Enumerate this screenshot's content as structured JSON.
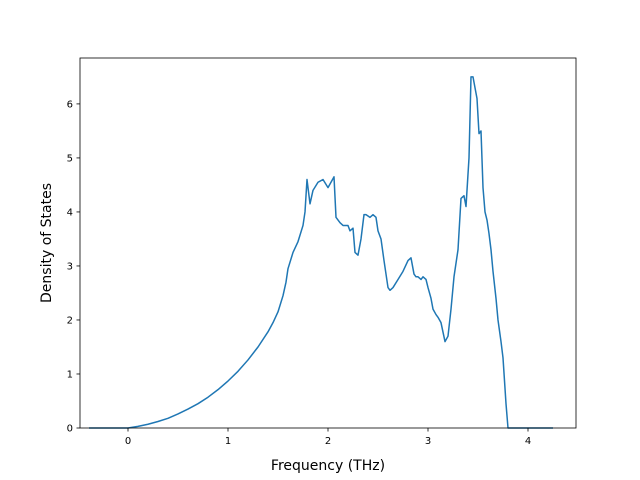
{
  "chart_data": {
    "type": "line",
    "title": "",
    "xlabel": "Frequency (THz)",
    "ylabel": "Density of States",
    "xlim": [
      -0.48,
      4.48
    ],
    "ylim": [
      0,
      6.85
    ],
    "xticks": [
      0,
      1,
      2,
      3,
      4
    ],
    "yticks": [
      0,
      1,
      2,
      3,
      4,
      5,
      6
    ],
    "grid": false,
    "legend": "none",
    "series": [
      {
        "color": "#1f77b4",
        "x": [
          -0.39,
          0.0,
          0.1,
          0.2,
          0.3,
          0.4,
          0.5,
          0.6,
          0.7,
          0.8,
          0.9,
          1.0,
          1.1,
          1.2,
          1.3,
          1.4,
          1.45,
          1.5,
          1.55,
          1.58,
          1.6,
          1.65,
          1.7,
          1.75,
          1.77,
          1.79,
          1.82,
          1.85,
          1.9,
          1.95,
          2.0,
          2.03,
          2.06,
          2.08,
          2.12,
          2.15,
          2.2,
          2.22,
          2.25,
          2.27,
          2.3,
          2.33,
          2.36,
          2.38,
          2.42,
          2.45,
          2.48,
          2.5,
          2.53,
          2.56,
          2.6,
          2.62,
          2.65,
          2.7,
          2.75,
          2.8,
          2.83,
          2.86,
          2.88,
          2.9,
          2.93,
          2.95,
          2.98,
          3.0,
          3.03,
          3.05,
          3.08,
          3.1,
          3.13,
          3.17,
          3.2,
          3.23,
          3.26,
          3.3,
          3.33,
          3.36,
          3.38,
          3.41,
          3.43,
          3.45,
          3.47,
          3.49,
          3.51,
          3.53,
          3.55,
          3.57,
          3.59,
          3.61,
          3.63,
          3.65,
          3.68,
          3.7,
          3.73,
          3.75,
          3.78,
          3.8,
          3.82,
          3.84,
          3.86,
          4.0,
          4.25
        ],
        "y": [
          0.0,
          0.0,
          0.03,
          0.07,
          0.12,
          0.18,
          0.26,
          0.35,
          0.45,
          0.57,
          0.71,
          0.87,
          1.05,
          1.26,
          1.5,
          1.78,
          1.95,
          2.15,
          2.45,
          2.7,
          2.95,
          3.25,
          3.45,
          3.75,
          4.0,
          4.6,
          4.15,
          4.4,
          4.55,
          4.6,
          4.45,
          4.55,
          4.65,
          3.9,
          3.8,
          3.75,
          3.75,
          3.65,
          3.7,
          3.25,
          3.2,
          3.5,
          3.95,
          3.95,
          3.9,
          3.95,
          3.9,
          3.65,
          3.5,
          3.1,
          2.6,
          2.55,
          2.6,
          2.75,
          2.9,
          3.1,
          3.15,
          2.85,
          2.8,
          2.8,
          2.75,
          2.8,
          2.75,
          2.6,
          2.4,
          2.2,
          2.1,
          2.05,
          1.95,
          1.6,
          1.7,
          2.2,
          2.8,
          3.3,
          4.25,
          4.3,
          4.1,
          5.0,
          6.5,
          6.5,
          6.3,
          6.1,
          5.45,
          5.5,
          4.45,
          4.0,
          3.85,
          3.6,
          3.3,
          2.9,
          2.4,
          2.0,
          1.6,
          1.3,
          0.45,
          0.0,
          0.0,
          0.0,
          0.0,
          0.0,
          0.0
        ]
      }
    ]
  }
}
